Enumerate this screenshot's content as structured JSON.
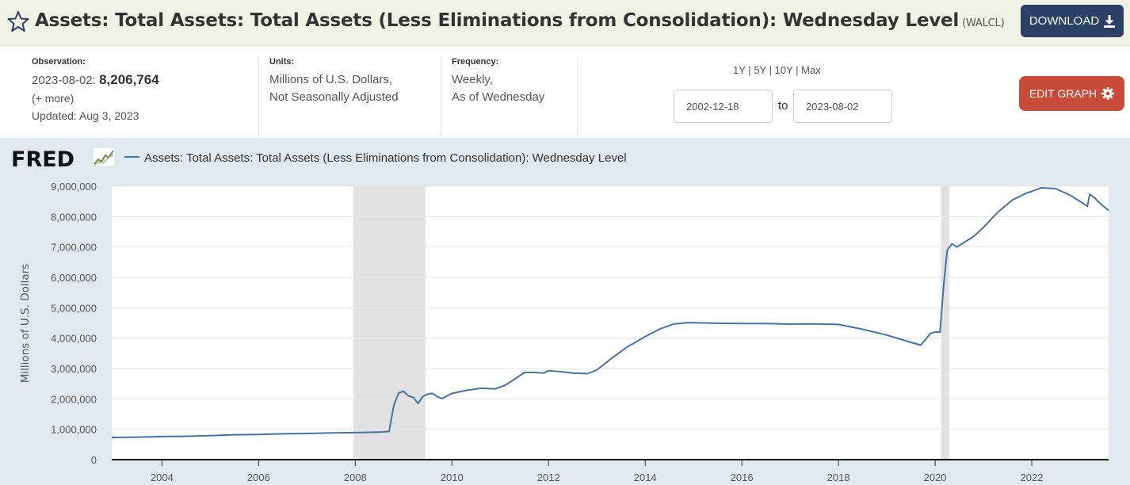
{
  "header": {
    "title": "Assets: Total Assets: Total Assets (Less Eliminations from Consolidation): Wednesday Level",
    "series_id": "(WALCL)",
    "download_label": "DOWNLOAD"
  },
  "meta": {
    "observation_label": "Observation:",
    "observation_date": "2023-08-02:",
    "observation_value": "8,206,764",
    "more_label": "(+ more)",
    "updated": "Updated: Aug 3, 2023",
    "units_label": "Units:",
    "units_line1": "Millions of U.S. Dollars,",
    "units_line2": "Not Seasonally Adjusted",
    "frequency_label": "Frequency:",
    "frequency_line1": "Weekly,",
    "frequency_line2": "As of Wednesday",
    "range_1y": "1Y",
    "range_5y": "5Y",
    "range_10y": "10Y",
    "range_max": "Max",
    "sep": "|",
    "start_date": "2002-12-18",
    "to_label": "to",
    "end_date": "2023-08-02",
    "edit_label": "EDIT GRAPH"
  },
  "colors": {
    "line": "#4572a7",
    "recession": "#e1e1e1",
    "edit_button": "#c84b3a",
    "download_button": "#2b4066",
    "chart_background": "#e1e9f0"
  },
  "chart_data": {
    "type": "line",
    "brand": "FRED",
    "ylabel": "Millions of U.S. Dollars",
    "xlim": [
      2002.96,
      2023.59
    ],
    "ylim": [
      0,
      9000000
    ],
    "yticks": [
      0,
      1000000,
      2000000,
      3000000,
      4000000,
      5000000,
      6000000,
      7000000,
      8000000,
      9000000
    ],
    "ytick_labels": [
      "0",
      "1,000,000",
      "2,000,000",
      "3,000,000",
      "4,000,000",
      "5,000,000",
      "6,000,000",
      "7,000,000",
      "8,000,000",
      "9,000,000"
    ],
    "xticks": [
      2004,
      2006,
      2008,
      2010,
      2012,
      2014,
      2016,
      2018,
      2020,
      2022
    ],
    "xtick_labels": [
      "2004",
      "2006",
      "2008",
      "2010",
      "2012",
      "2014",
      "2016",
      "2018",
      "2020",
      "2022"
    ],
    "grid": true,
    "legend_position": "top-left",
    "recessions": [
      [
        2007.96,
        2009.45
      ],
      [
        2020.12,
        2020.29
      ]
    ],
    "series": [
      {
        "name": "Assets: Total Assets: Total Assets (Less Eliminations from Consolidation): Wednesday Level",
        "x": [
          2002.96,
          2003.5,
          2004.0,
          2004.5,
          2005.0,
          2005.5,
          2006.0,
          2006.5,
          2007.0,
          2007.5,
          2008.0,
          2008.3,
          2008.55,
          2008.7,
          2008.8,
          2008.9,
          2009.0,
          2009.1,
          2009.2,
          2009.3,
          2009.4,
          2009.5,
          2009.6,
          2009.7,
          2009.8,
          2010.0,
          2010.3,
          2010.6,
          2010.9,
          2011.1,
          2011.3,
          2011.5,
          2011.7,
          2011.9,
          2012.0,
          2012.2,
          2012.5,
          2012.8,
          2013.0,
          2013.3,
          2013.6,
          2014.0,
          2014.3,
          2014.6,
          2014.9,
          2015.2,
          2015.5,
          2016.0,
          2016.5,
          2017.0,
          2017.5,
          2018.0,
          2018.5,
          2019.0,
          2019.5,
          2019.7,
          2019.8,
          2019.9,
          2020.0,
          2020.1,
          2020.18,
          2020.25,
          2020.35,
          2020.45,
          2020.6,
          2020.8,
          2021.0,
          2021.3,
          2021.6,
          2021.9,
          2022.0,
          2022.2,
          2022.5,
          2022.8,
          2023.0,
          2023.15,
          2023.2,
          2023.3,
          2023.45,
          2023.59
        ],
        "values": [
          730000,
          740000,
          760000,
          770000,
          790000,
          820000,
          830000,
          850000,
          860000,
          880000,
          890000,
          900000,
          910000,
          930000,
          1800000,
          2200000,
          2250000,
          2100000,
          2050000,
          1850000,
          2080000,
          2160000,
          2180000,
          2070000,
          2010000,
          2180000,
          2280000,
          2350000,
          2330000,
          2450000,
          2650000,
          2870000,
          2870000,
          2850000,
          2930000,
          2900000,
          2850000,
          2830000,
          2950000,
          3330000,
          3680000,
          4050000,
          4300000,
          4470000,
          4510000,
          4500000,
          4490000,
          4480000,
          4480000,
          4460000,
          4470000,
          4450000,
          4290000,
          4100000,
          3860000,
          3770000,
          3950000,
          4150000,
          4200000,
          4200000,
          5800000,
          6900000,
          7100000,
          7000000,
          7150000,
          7350000,
          7650000,
          8150000,
          8550000,
          8780000,
          8830000,
          8950000,
          8920000,
          8700000,
          8500000,
          8340000,
          8740000,
          8620000,
          8380000,
          8206764
        ]
      }
    ]
  }
}
